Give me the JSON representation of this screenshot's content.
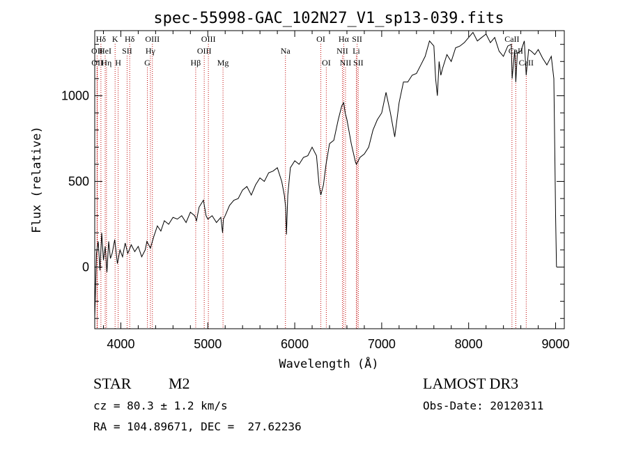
{
  "chart_data": {
    "type": "line",
    "title": "spec-55998-GAC_102N27_V1_sp13-039.fits",
    "xlabel": "Wavelength (Å)",
    "ylabel": "Flux (relative)",
    "xlim": [
      3700,
      9100
    ],
    "ylim": [
      -360,
      1380
    ],
    "x_ticks": [
      4000,
      5000,
      6000,
      7000,
      8000,
      9000
    ],
    "y_ticks": [
      0,
      500,
      1000
    ],
    "series": [
      {
        "name": "flux",
        "x": [
          3700,
          3720,
          3740,
          3760,
          3780,
          3800,
          3820,
          3840,
          3860,
          3880,
          3900,
          3930,
          3960,
          3990,
          4020,
          4050,
          4080,
          4120,
          4160,
          4200,
          4240,
          4280,
          4300,
          4340,
          4380,
          4420,
          4460,
          4500,
          4550,
          4600,
          4650,
          4700,
          4750,
          4800,
          4850,
          4870,
          4900,
          4950,
          4980,
          5000,
          5050,
          5100,
          5150,
          5170,
          5180,
          5200,
          5250,
          5300,
          5350,
          5400,
          5450,
          5500,
          5550,
          5600,
          5650,
          5700,
          5750,
          5800,
          5850,
          5880,
          5895,
          5905,
          5920,
          5950,
          6000,
          6050,
          6100,
          6150,
          6200,
          6250,
          6280,
          6300,
          6330,
          6360,
          6400,
          6450,
          6500,
          6540,
          6563,
          6580,
          6600,
          6650,
          6700,
          6710,
          6750,
          6800,
          6850,
          6900,
          6950,
          7000,
          7050,
          7100,
          7150,
          7200,
          7250,
          7300,
          7350,
          7400,
          7450,
          7500,
          7550,
          7600,
          7620,
          7640,
          7660,
          7680,
          7700,
          7750,
          7800,
          7850,
          7900,
          7950,
          8000,
          8050,
          8100,
          8150,
          8200,
          8250,
          8300,
          8350,
          8400,
          8450,
          8490,
          8500,
          8530,
          8542,
          8560,
          8600,
          8640,
          8662,
          8690,
          8720,
          8760,
          8800,
          8850,
          8900,
          8950,
          8980,
          8995,
          9000,
          9010
        ],
        "y": [
          -300,
          80,
          150,
          -20,
          200,
          40,
          120,
          -30,
          150,
          50,
          80,
          160,
          20,
          100,
          60,
          140,
          80,
          130,
          90,
          120,
          60,
          100,
          150,
          110,
          180,
          240,
          210,
          270,
          250,
          290,
          280,
          300,
          260,
          320,
          300,
          270,
          350,
          390,
          300,
          280,
          300,
          260,
          290,
          200,
          280,
          300,
          360,
          390,
          400,
          450,
          470,
          420,
          480,
          520,
          500,
          550,
          560,
          580,
          500,
          420,
          350,
          190,
          420,
          580,
          620,
          600,
          640,
          650,
          700,
          650,
          480,
          420,
          480,
          600,
          720,
          740,
          860,
          940,
          960,
          900,
          860,
          720,
          610,
          600,
          640,
          660,
          700,
          800,
          860,
          900,
          1020,
          900,
          760,
          960,
          1080,
          1080,
          1120,
          1130,
          1180,
          1230,
          1320,
          1290,
          1100,
          1000,
          1200,
          1120,
          1160,
          1240,
          1200,
          1280,
          1290,
          1310,
          1340,
          1370,
          1320,
          1340,
          1360,
          1310,
          1340,
          1260,
          1230,
          1290,
          1300,
          1100,
          1270,
          1080,
          1250,
          1260,
          1320,
          1120,
          1270,
          1260,
          1240,
          1270,
          1220,
          1180,
          1230,
          1100,
          500,
          300,
          0
        ]
      }
    ],
    "line_labels": [
      {
        "label": "Hδ",
        "wavelength": 3771,
        "row": 0
      },
      {
        "label": "OII",
        "wavelength": 3727,
        "row": 1
      },
      {
        "label": "OII",
        "wavelength": 3729,
        "row": 2
      },
      {
        "label": "HeI",
        "wavelength": 3820,
        "row": 1
      },
      {
        "label": "Hη",
        "wavelength": 3835,
        "row": 2
      },
      {
        "label": "K",
        "wavelength": 3934,
        "row": 0
      },
      {
        "label": "SII",
        "wavelength": 4072,
        "row": 1
      },
      {
        "label": "H",
        "wavelength": 3969,
        "row": 2
      },
      {
        "label": "Hδ",
        "wavelength": 4102,
        "row": 0
      },
      {
        "label": "OIII",
        "wavelength": 4363,
        "row": 0
      },
      {
        "label": "Hγ",
        "wavelength": 4340,
        "row": 1
      },
      {
        "label": "G",
        "wavelength": 4305,
        "row": 2
      },
      {
        "label": "OIII",
        "wavelength": 5007,
        "row": 0
      },
      {
        "label": "OIII",
        "wavelength": 4959,
        "row": 1
      },
      {
        "label": "Hβ",
        "wavelength": 4861,
        "row": 2
      },
      {
        "label": "Mg",
        "wavelength": 5175,
        "row": 2
      },
      {
        "label": "Na",
        "wavelength": 5893,
        "row": 1
      },
      {
        "label": "OI",
        "wavelength": 6300,
        "row": 0
      },
      {
        "label": "OI",
        "wavelength": 6363,
        "row": 2
      },
      {
        "label": "Hα",
        "wavelength": 6563,
        "row": 0
      },
      {
        "label": "SII",
        "wavelength": 6717,
        "row": 0
      },
      {
        "label": "NII",
        "wavelength": 6548,
        "row": 1
      },
      {
        "label": "Li",
        "wavelength": 6708,
        "row": 1
      },
      {
        "label": "NII",
        "wavelength": 6584,
        "row": 2
      },
      {
        "label": "SII",
        "wavelength": 6731,
        "row": 2
      },
      {
        "label": "CaII",
        "wavelength": 8498,
        "row": 0
      },
      {
        "label": "CaII",
        "wavelength": 8542,
        "row": 1
      },
      {
        "label": "CaII",
        "wavelength": 8662,
        "row": 2
      }
    ]
  },
  "info": {
    "class": "STAR",
    "subclass": "M2",
    "survey": "LAMOST DR3",
    "cz": "cz = 80.3 ± 1.2 km/s",
    "obs_date": "Obs-Date: 20120311",
    "coords": "RA = 104.89671, DEC =  27.62236"
  },
  "colors": {
    "line_marker": "#c00000",
    "spectrum": "#000000"
  }
}
